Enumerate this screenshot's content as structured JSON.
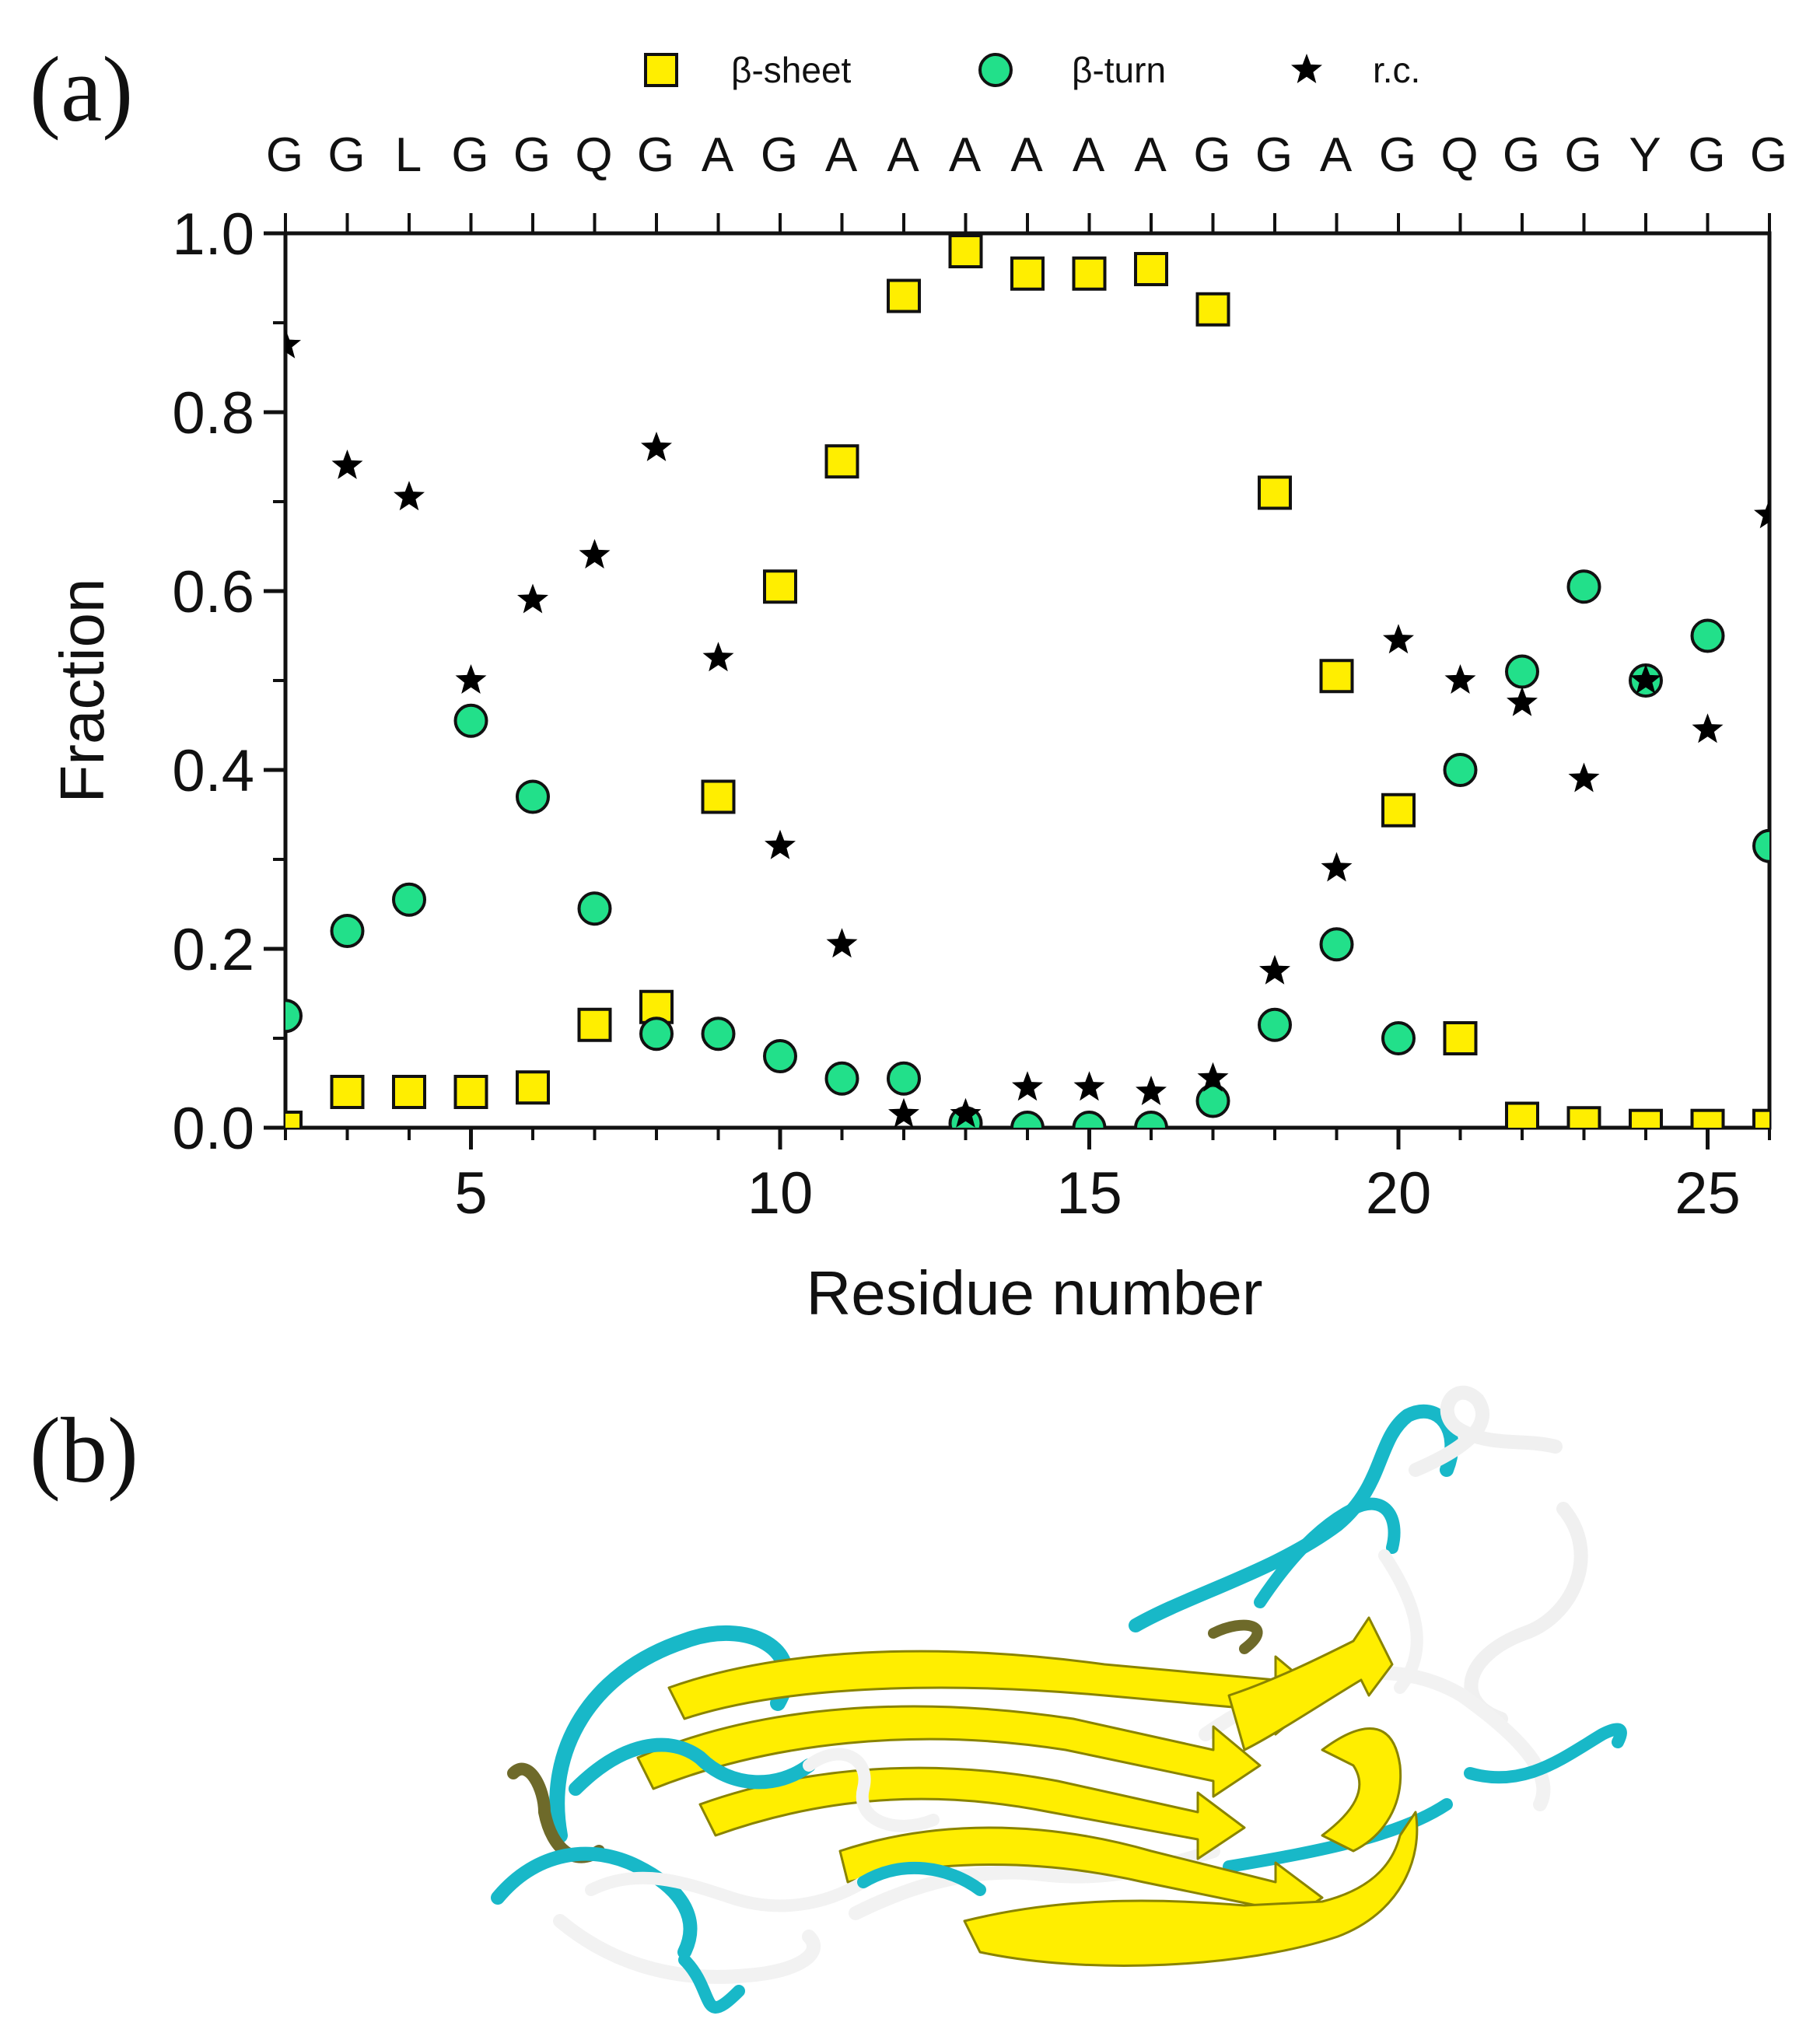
{
  "panels": {
    "a": "(a)",
    "b": "(b)"
  },
  "colors": {
    "sheet_fill": "#ffee00",
    "turn_fill": "#22e08a",
    "rc_fill": "#000000",
    "cyan": "#18b8c8",
    "olive": "#6e6a2a",
    "white_coil": "#f2f2f2"
  },
  "sequence": [
    "G",
    "G",
    "L",
    "G",
    "G",
    "Q",
    "G",
    "A",
    "G",
    "A",
    "A",
    "A",
    "A",
    "A",
    "A",
    "G",
    "G",
    "A",
    "G",
    "Q",
    "G",
    "G",
    "Y",
    "G",
    "G"
  ],
  "chart_data": {
    "type": "scatter",
    "title": "",
    "xlabel": "Residue number",
    "ylabel": "Fraction",
    "xlim": [
      2,
      26
    ],
    "ylim": [
      0,
      1.0
    ],
    "xticks": [
      5,
      10,
      15,
      20,
      25
    ],
    "yticks": [
      "0.0",
      "0.2",
      "0.4",
      "0.6",
      "0.8",
      "1.0"
    ],
    "legend_position": "top",
    "x": [
      2,
      3,
      4,
      5,
      6,
      7,
      8,
      9,
      10,
      11,
      12,
      13,
      14,
      15,
      16,
      17,
      18,
      19,
      20,
      21,
      22,
      23,
      24,
      25,
      26
    ],
    "series": [
      {
        "name": "β-sheet",
        "marker": "square",
        "values": [
          0.0,
          0.04,
          0.04,
          0.04,
          0.045,
          0.115,
          0.135,
          0.37,
          0.605,
          0.745,
          0.93,
          0.98,
          0.955,
          0.955,
          0.96,
          0.915,
          0.71,
          0.505,
          0.355,
          0.1,
          0.01,
          0.005,
          0.002,
          0.002,
          0.002
        ]
      },
      {
        "name": "β-turn",
        "marker": "circle",
        "values": [
          0.125,
          0.22,
          0.255,
          0.455,
          0.37,
          0.245,
          0.105,
          0.105,
          0.08,
          0.055,
          0.055,
          0.005,
          0.0,
          0.0,
          0.0,
          0.03,
          0.115,
          0.205,
          0.1,
          0.4,
          0.51,
          0.605,
          0.5,
          0.55,
          0.315
        ]
      },
      {
        "name": "r.c.",
        "marker": "star",
        "values": [
          0.875,
          0.74,
          0.705,
          0.5,
          0.59,
          0.64,
          0.76,
          0.525,
          0.315,
          0.205,
          0.015,
          0.015,
          0.045,
          0.045,
          0.04,
          0.055,
          0.175,
          0.29,
          0.545,
          0.5,
          0.475,
          0.39,
          0.5,
          0.445,
          0.685
        ]
      }
    ]
  }
}
